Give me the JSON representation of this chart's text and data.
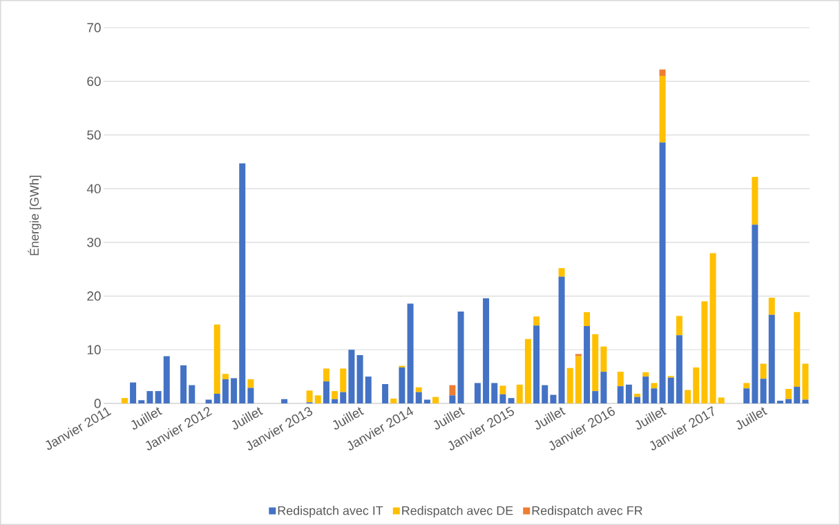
{
  "chart_data": {
    "type": "bar",
    "stacked": true,
    "ylabel": "Énergie [GWh]",
    "categories": [
      "Janvier 2011",
      null,
      null,
      null,
      null,
      null,
      "Juillet",
      null,
      null,
      null,
      null,
      null,
      "Janvier 2012",
      null,
      null,
      null,
      null,
      null,
      "Juillet",
      null,
      null,
      null,
      null,
      null,
      "Janvier 2013",
      null,
      null,
      null,
      null,
      null,
      "Juillet",
      null,
      null,
      null,
      null,
      null,
      "Janvier 2014",
      null,
      null,
      null,
      null,
      null,
      "Juillet",
      null,
      null,
      null,
      null,
      null,
      "Janvier 2015",
      null,
      null,
      null,
      null,
      null,
      "Juillet",
      null,
      null,
      null,
      null,
      null,
      "Janvier 2016",
      null,
      null,
      null,
      null,
      null,
      "Juillet",
      null,
      null,
      null,
      null,
      null,
      "Janvier 2017",
      null,
      null,
      null,
      null,
      null,
      "Juillet",
      null,
      null,
      null,
      null,
      null
    ],
    "series": [
      {
        "name": "Redispatch avec IT",
        "color": "#4472c4",
        "values": [
          null,
          null,
          null,
          3.9,
          0.6,
          2.3,
          2.3,
          8.8,
          null,
          7.1,
          3.4,
          null,
          0.7,
          1.8,
          4.5,
          4.7,
          44.7,
          2.9,
          null,
          null,
          null,
          0.8,
          null,
          null,
          0.2,
          null,
          4.1,
          0.8,
          2.1,
          10.0,
          9.0,
          5.0,
          null,
          3.6,
          null,
          6.7,
          18.6,
          2.1,
          0.7,
          null,
          null,
          1.5,
          17.1,
          null,
          3.8,
          19.6,
          3.8,
          1.7,
          1.0,
          null,
          null,
          14.5,
          3.4,
          1.6,
          23.6,
          null,
          null,
          14.4,
          2.3,
          5.9,
          null,
          3.2,
          3.5,
          1.2,
          5.0,
          2.8,
          48.6,
          4.8,
          12.7,
          null,
          null,
          null,
          null,
          null,
          null,
          null,
          2.8,
          33.3,
          4.6,
          16.5,
          0.5,
          0.8,
          3.1,
          0.7
        ]
      },
      {
        "name": "Redispatch avec DE",
        "color": "#ffc000",
        "values": [
          null,
          null,
          1.0,
          null,
          null,
          null,
          null,
          null,
          null,
          null,
          null,
          null,
          null,
          12.9,
          1.0,
          null,
          null,
          1.6,
          null,
          null,
          null,
          null,
          null,
          null,
          2.2,
          1.5,
          2.4,
          1.5,
          4.4,
          null,
          null,
          null,
          null,
          null,
          0.9,
          0.3,
          null,
          0.9,
          null,
          1.2,
          null,
          null,
          null,
          null,
          null,
          null,
          null,
          1.6,
          null,
          3.5,
          12.0,
          1.7,
          null,
          null,
          1.6,
          6.6,
          8.8,
          2.6,
          10.6,
          4.7,
          null,
          2.7,
          null,
          0.6,
          0.8,
          1.0,
          12.4,
          0.3,
          3.6,
          2.5,
          6.7,
          19.0,
          28.0,
          1.1,
          null,
          null,
          1.0,
          8.9,
          2.8,
          3.2,
          null,
          1.9,
          13.9,
          6.7
        ]
      },
      {
        "name": "Redispatch avec FR",
        "color": "#ed7d31",
        "values": [
          null,
          null,
          null,
          null,
          null,
          null,
          null,
          null,
          null,
          null,
          null,
          null,
          null,
          null,
          null,
          null,
          null,
          null,
          null,
          null,
          null,
          null,
          null,
          null,
          null,
          null,
          null,
          null,
          null,
          null,
          null,
          null,
          null,
          null,
          null,
          null,
          null,
          null,
          null,
          null,
          null,
          1.9,
          null,
          null,
          null,
          null,
          null,
          null,
          null,
          null,
          null,
          null,
          null,
          null,
          null,
          null,
          0.4,
          null,
          null,
          null,
          null,
          null,
          null,
          null,
          null,
          null,
          1.2,
          null,
          null,
          null,
          null,
          null,
          null,
          null,
          null,
          null,
          null,
          null,
          null,
          null,
          null,
          null,
          null,
          null
        ]
      }
    ],
    "ylim": [
      0,
      70
    ],
    "yticks": [
      0,
      10,
      20,
      30,
      40,
      50,
      60,
      70
    ],
    "grid": "y",
    "legend": "bottom"
  }
}
